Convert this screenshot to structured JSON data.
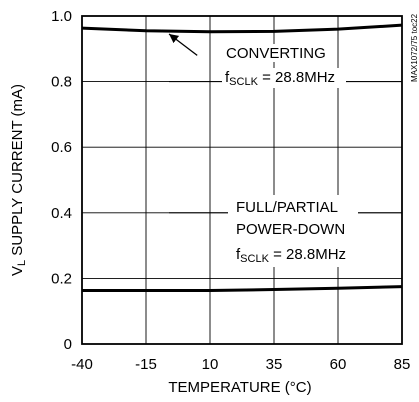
{
  "chart_data": {
    "type": "line",
    "title": "",
    "xlabel": "TEMPERATURE (°C)",
    "ylabel": {
      "main": "V",
      "sub": "L",
      "rest": " SUPPLY CURRENT (mA)"
    },
    "xlim": [
      -40,
      85
    ],
    "ylim": [
      0,
      1.0
    ],
    "xticks": [
      -40,
      -15,
      10,
      35,
      60,
      85
    ],
    "yticks": [
      {
        "value": 0,
        "label": "0"
      },
      {
        "value": 0.2,
        "label": "0.2"
      },
      {
        "value": 0.4,
        "label": "0.4"
      },
      {
        "value": 0.6,
        "label": "0.6"
      },
      {
        "value": 0.8,
        "label": "0.8"
      },
      {
        "value": 1.0,
        "label": "1.0"
      }
    ],
    "grid": true,
    "series": [
      {
        "x": [
          -40,
          -15,
          10,
          35,
          60,
          85
        ],
        "y": [
          0.963,
          0.955,
          0.952,
          0.953,
          0.96,
          0.972
        ]
      },
      {
        "x": [
          -40,
          -15,
          10,
          35,
          60,
          85
        ],
        "y": [
          0.163,
          0.163,
          0.163,
          0.166,
          0.17,
          0.175
        ]
      }
    ],
    "annotations": [
      {
        "lines": [
          "CONVERTING"
        ],
        "freq": {
          "prefix": "f",
          "sub": "SCLK",
          "rest": " = 28.8MHz"
        }
      },
      {
        "lines": [
          "FULL/PARTIAL",
          "POWER-DOWN"
        ],
        "freq": {
          "prefix": "f",
          "sub": "SCLK",
          "rest": " = 28.8MHz"
        }
      }
    ],
    "figure_tag": "MAX1072/75 toc22"
  }
}
